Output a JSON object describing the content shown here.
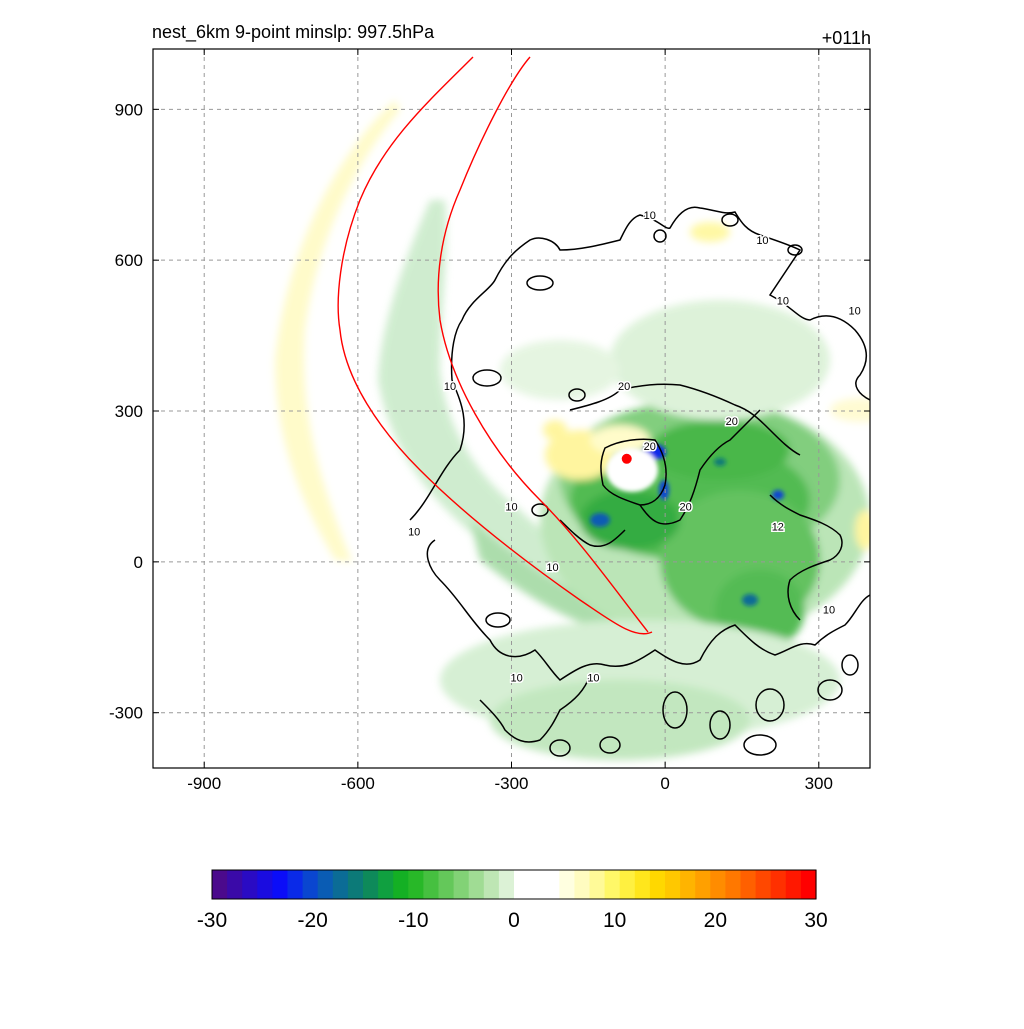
{
  "figure": {
    "title_left": "nest_6km  9-point minslp: 997.5hPa",
    "title_right": "+011h"
  },
  "chart_data": {
    "type": "heatmap",
    "x_ticks": [
      -900,
      -600,
      -300,
      0,
      300
    ],
    "y_ticks": [
      -300,
      0,
      300,
      600,
      900
    ],
    "x_range": [
      -1000,
      400
    ],
    "y_range": [
      -410,
      1020
    ],
    "grid": true,
    "grid_style": "dashed",
    "contour_color": "#000000",
    "contour_labels": [
      {
        "text": "10",
        "x": -30,
        "y": 690
      },
      {
        "text": "10",
        "x": 190,
        "y": 640
      },
      {
        "text": "10",
        "x": 230,
        "y": 520
      },
      {
        "text": "10",
        "x": 370,
        "y": 500
      },
      {
        "text": "10",
        "x": -420,
        "y": 350
      },
      {
        "text": "20",
        "x": -80,
        "y": 350
      },
      {
        "text": "20",
        "x": 130,
        "y": 280
      },
      {
        "text": "20",
        "x": -30,
        "y": 230
      },
      {
        "text": "20",
        "x": 40,
        "y": 110
      },
      {
        "text": "12",
        "x": 220,
        "y": 70
      },
      {
        "text": "10",
        "x": -300,
        "y": 110
      },
      {
        "text": "10",
        "x": -490,
        "y": 60
      },
      {
        "text": "10",
        "x": -220,
        "y": -10
      },
      {
        "text": "10",
        "x": 320,
        "y": -95
      },
      {
        "text": "10",
        "x": -290,
        "y": -230
      },
      {
        "text": "10",
        "x": -140,
        "y": -230
      }
    ],
    "center_marker": {
      "x": -75,
      "y": 205,
      "color": "#ff0000"
    },
    "track_lines": {
      "color": "#ff0000"
    },
    "colorbar": {
      "ticks": [
        -30,
        -20,
        -10,
        0,
        10,
        20,
        30
      ],
      "min": -30,
      "max": 30,
      "colors": [
        "#4b0a8c",
        "#3a0aa8",
        "#2a0bc4",
        "#1a0ce0",
        "#0b0df8",
        "#0a2ae8",
        "#0a46d0",
        "#0a5cb4",
        "#0b6c96",
        "#0c7a78",
        "#0e8a5a",
        "#10a040",
        "#14b024",
        "#28b828",
        "#46c040",
        "#64c85a",
        "#82d276",
        "#a0dc94",
        "#bee6b4",
        "#dcf2d6",
        "#ffffff",
        "#ffffff",
        "#ffffff",
        "#ffffe0",
        "#fffcc0",
        "#fffa98",
        "#fff868",
        "#fff040",
        "#ffe61c",
        "#ffd800",
        "#ffc800",
        "#ffb400",
        "#ffa000",
        "#ff8c00",
        "#ff7800",
        "#ff6000",
        "#ff4800",
        "#ff3000",
        "#ff1800",
        "#ff0000"
      ]
    }
  }
}
